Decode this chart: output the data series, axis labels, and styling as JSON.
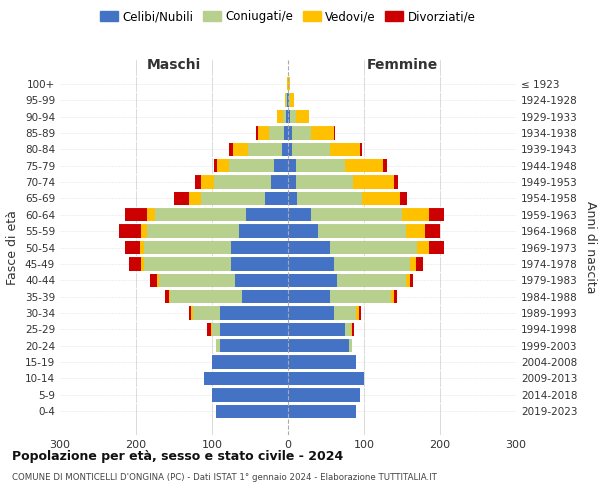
{
  "age_groups": [
    "0-4",
    "5-9",
    "10-14",
    "15-19",
    "20-24",
    "25-29",
    "30-34",
    "35-39",
    "40-44",
    "45-49",
    "50-54",
    "55-59",
    "60-64",
    "65-69",
    "70-74",
    "75-79",
    "80-84",
    "85-89",
    "90-94",
    "95-99",
    "100+"
  ],
  "birth_years": [
    "2019-2023",
    "2014-2018",
    "2009-2013",
    "2004-2008",
    "1999-2003",
    "1994-1998",
    "1989-1993",
    "1984-1988",
    "1979-1983",
    "1974-1978",
    "1969-1973",
    "1964-1968",
    "1959-1963",
    "1954-1958",
    "1949-1953",
    "1944-1948",
    "1939-1943",
    "1934-1938",
    "1929-1933",
    "1924-1928",
    "≤ 1923"
  ],
  "colors": {
    "celibi": "#4472c4",
    "coniugati": "#b8d08d",
    "vedovi": "#ffc000",
    "divorziati": "#cc0000"
  },
  "maschi": {
    "celibi": [
      95,
      100,
      110,
      100,
      90,
      90,
      90,
      60,
      70,
      75,
      75,
      65,
      55,
      30,
      22,
      18,
      8,
      5,
      2,
      1,
      0
    ],
    "coniugati": [
      0,
      0,
      0,
      0,
      5,
      10,
      35,
      95,
      100,
      115,
      115,
      120,
      120,
      85,
      75,
      60,
      45,
      20,
      5,
      1,
      0
    ],
    "vedovi": [
      0,
      0,
      0,
      0,
      0,
      1,
      2,
      2,
      3,
      4,
      5,
      8,
      10,
      15,
      18,
      15,
      20,
      15,
      8,
      2,
      1
    ],
    "divorziati": [
      0,
      0,
      0,
      0,
      0,
      5,
      3,
      5,
      8,
      15,
      20,
      30,
      30,
      20,
      8,
      5,
      5,
      2,
      0,
      0,
      0
    ]
  },
  "femmine": {
    "nubili": [
      90,
      95,
      100,
      90,
      80,
      75,
      60,
      55,
      65,
      60,
      55,
      40,
      30,
      12,
      10,
      10,
      5,
      5,
      2,
      1,
      0
    ],
    "coniugate": [
      0,
      0,
      0,
      0,
      4,
      8,
      30,
      80,
      90,
      100,
      115,
      115,
      120,
      85,
      75,
      65,
      50,
      25,
      8,
      2,
      0
    ],
    "vedove": [
      0,
      0,
      0,
      0,
      0,
      1,
      3,
      4,
      5,
      8,
      15,
      25,
      35,
      50,
      55,
      50,
      40,
      30,
      18,
      5,
      2
    ],
    "divorziate": [
      0,
      0,
      0,
      0,
      0,
      3,
      3,
      5,
      5,
      10,
      20,
      20,
      20,
      10,
      5,
      5,
      3,
      2,
      0,
      0,
      0
    ]
  },
  "title": "Popolazione per età, sesso e stato civile - 2024",
  "subtitle": "COMUNE DI MONTICELLI D'ONGINA (PC) - Dati ISTAT 1° gennaio 2024 - Elaborazione TUTTITALIA.IT",
  "xlabel_left": "Maschi",
  "xlabel_right": "Femmine",
  "ylabel": "Fasce di età",
  "ylabel_right": "Anni di nascita",
  "xlim": 300,
  "legend_labels": [
    "Celibi/Nubili",
    "Coniugati/e",
    "Vedovi/e",
    "Divorziati/e"
  ]
}
